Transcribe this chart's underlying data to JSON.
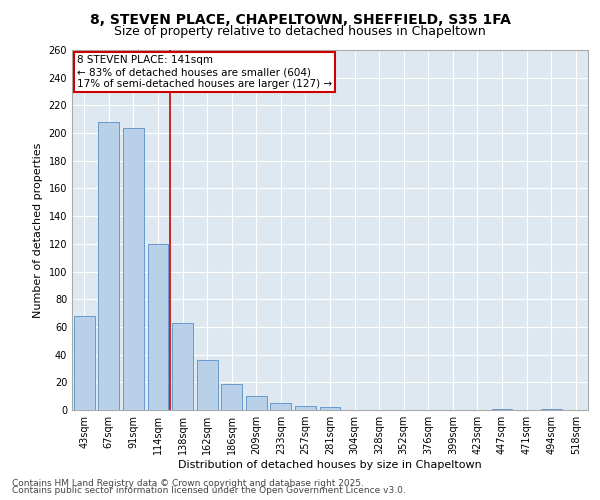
{
  "title1": "8, STEVEN PLACE, CHAPELTOWN, SHEFFIELD, S35 1FA",
  "title2": "Size of property relative to detached houses in Chapeltown",
  "xlabel": "Distribution of detached houses by size in Chapeltown",
  "ylabel": "Number of detached properties",
  "categories": [
    "43sqm",
    "67sqm",
    "91sqm",
    "114sqm",
    "138sqm",
    "162sqm",
    "186sqm",
    "209sqm",
    "233sqm",
    "257sqm",
    "281sqm",
    "304sqm",
    "328sqm",
    "352sqm",
    "376sqm",
    "399sqm",
    "423sqm",
    "447sqm",
    "471sqm",
    "494sqm",
    "518sqm"
  ],
  "values": [
    68,
    208,
    204,
    120,
    63,
    36,
    19,
    10,
    5,
    3,
    2,
    0,
    0,
    0,
    0,
    0,
    0,
    1,
    0,
    1,
    0
  ],
  "bar_color": "#b8d0e8",
  "bar_edge_color": "#6699cc",
  "vline_color": "#cc0000",
  "vline_pos": 3.5,
  "annotation_text": "8 STEVEN PLACE: 141sqm\n← 83% of detached houses are smaller (604)\n17% of semi-detached houses are larger (127) →",
  "annotation_box_color": "#ffffff",
  "annotation_box_edge": "#cc0000",
  "ylim": [
    0,
    260
  ],
  "yticks": [
    0,
    20,
    40,
    60,
    80,
    100,
    120,
    140,
    160,
    180,
    200,
    220,
    240,
    260
  ],
  "background_color": "#dde8f0",
  "footer1": "Contains HM Land Registry data © Crown copyright and database right 2025.",
  "footer2": "Contains public sector information licensed under the Open Government Licence v3.0.",
  "title_fontsize": 10,
  "subtitle_fontsize": 9,
  "axis_label_fontsize": 8,
  "tick_fontsize": 7,
  "annotation_fontsize": 7.5,
  "footer_fontsize": 6.5
}
